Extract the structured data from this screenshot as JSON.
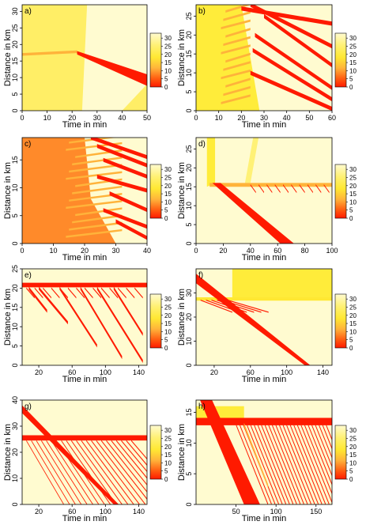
{
  "figure": {
    "colorbar_ticks": [
      "30",
      "25",
      "20",
      "15",
      "10",
      "5",
      "0"
    ],
    "colors": {
      "high": "#fffbd0",
      "mid_high": "#fff176",
      "mid": "#ffe833",
      "mid_low": "#ffb33a",
      "low": "#ff5a10",
      "zero": "#ff1a00",
      "background_a": "#ffee66",
      "background_b": "#ffec3a",
      "background_c": "#ff8a2a"
    }
  },
  "chart_data": [
    {
      "type": "heatmap",
      "panel_label": "a)",
      "xlabel": "Time in min",
      "ylabel": "Distance in km",
      "xlim": [
        0,
        50
      ],
      "ylim": [
        0,
        32
      ],
      "xticks": [
        "0",
        "10",
        "20",
        "30",
        "40",
        "50"
      ],
      "yticks": [
        "0",
        "5",
        "10",
        "15",
        "20",
        "25",
        "30"
      ],
      "colorbar": {
        "range": [
          0,
          33
        ]
      },
      "description_values": {
        "jam_start_time": 22,
        "jam_start_distance": 17,
        "jam_end_time": 50,
        "jam_end_distance_range": [
          8,
          11
        ]
      }
    },
    {
      "type": "heatmap",
      "panel_label": "b)",
      "xlabel": "Time in min",
      "ylabel": "Distance in km",
      "xlim": [
        0,
        60
      ],
      "ylim": [
        0,
        28
      ],
      "xticks": [
        "0",
        "10",
        "20",
        "30",
        "40",
        "50",
        "60"
      ],
      "yticks": [
        "0",
        "5",
        "10",
        "15",
        "20",
        "25"
      ],
      "colorbar": {
        "range": [
          0,
          33
        ]
      }
    },
    {
      "type": "heatmap",
      "panel_label": "c)",
      "xlabel": "Time in min",
      "ylabel": "Distance in km",
      "xlim": [
        0,
        40
      ],
      "ylim": [
        0,
        19
      ],
      "xticks": [
        "0",
        "10",
        "20",
        "30",
        "40"
      ],
      "yticks": [
        "0",
        "5",
        "10",
        "15"
      ],
      "colorbar": {
        "range": [
          0,
          33
        ]
      }
    },
    {
      "type": "heatmap",
      "panel_label": "d)",
      "xlabel": "Time in min",
      "ylabel": "Distance in km",
      "xlim": [
        0,
        100
      ],
      "ylim": [
        0,
        28
      ],
      "xticks": [
        "0",
        "20",
        "40",
        "60",
        "80",
        "100"
      ],
      "yticks": [
        "0",
        "5",
        "10",
        "15",
        "20",
        "25"
      ],
      "colorbar": {
        "range": [
          0,
          33
        ]
      }
    },
    {
      "type": "heatmap",
      "panel_label": "e)",
      "xlabel": "Time in min",
      "ylabel": "Distance in km",
      "xlim": [
        0,
        150
      ],
      "ylim": [
        0,
        25
      ],
      "xticks": [
        "20",
        "60",
        "100",
        "140"
      ],
      "yticks": [
        "0",
        "5",
        "10",
        "15",
        "20",
        "25"
      ],
      "colorbar": {
        "range": [
          0,
          33
        ]
      }
    },
    {
      "type": "heatmap",
      "panel_label": "f)",
      "xlabel": "Time in min",
      "ylabel": "Distance in km",
      "xlim": [
        0,
        150
      ],
      "ylim": [
        0,
        40
      ],
      "xticks": [
        "20",
        "60",
        "100",
        "140"
      ],
      "yticks": [
        "0",
        "10",
        "20",
        "30"
      ],
      "colorbar": {
        "range": [
          0,
          33
        ]
      }
    },
    {
      "type": "heatmap",
      "panel_label": "g)",
      "xlabel": "Time in min",
      "ylabel": "Distance in km",
      "xlim": [
        0,
        150
      ],
      "ylim": [
        0,
        40
      ],
      "xticks": [
        "20",
        "60",
        "100",
        "140"
      ],
      "yticks": [
        "0",
        "10",
        "20",
        "30",
        "40"
      ],
      "colorbar": {
        "range": [
          0,
          33
        ]
      }
    },
    {
      "type": "heatmap",
      "panel_label": "h)",
      "xlabel": "Time in min",
      "ylabel": "Distance in km",
      "xlim": [
        0,
        170
      ],
      "ylim": [
        0,
        17
      ],
      "xticks": [
        "50",
        "100",
        "150"
      ],
      "yticks": [
        "0",
        "5",
        "10",
        "15"
      ],
      "colorbar": {
        "range": [
          0,
          33
        ]
      }
    }
  ]
}
